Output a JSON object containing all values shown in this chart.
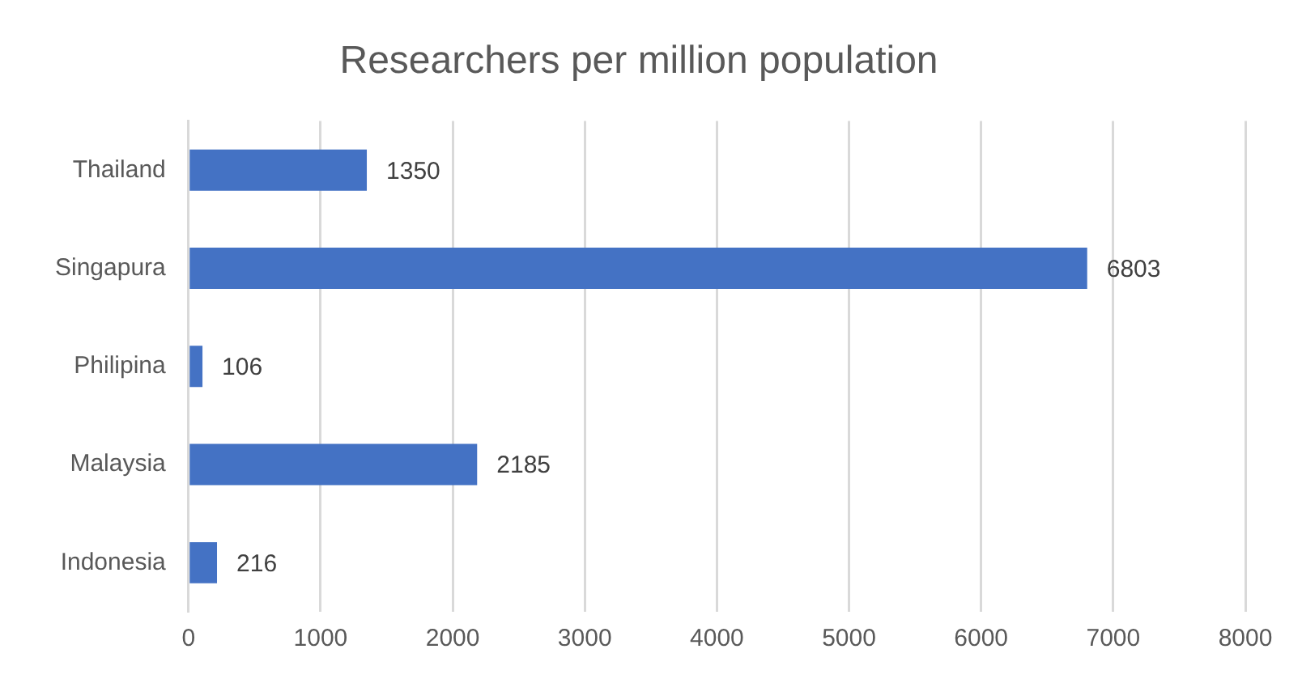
{
  "chart_data": {
    "type": "bar",
    "orientation": "horizontal",
    "title": "Researchers per million population",
    "categories": [
      "Thailand",
      "Singapura",
      "Philipina",
      "Malaysia",
      "Indonesia"
    ],
    "values": [
      1350,
      6803,
      106,
      2185,
      216
    ],
    "color": "#4472c4",
    "xlim": [
      0,
      8000
    ],
    "xticks": [
      0,
      1000,
      2000,
      3000,
      4000,
      5000,
      6000,
      7000,
      8000
    ],
    "grid": "x",
    "data_labels": true,
    "legend": false
  }
}
